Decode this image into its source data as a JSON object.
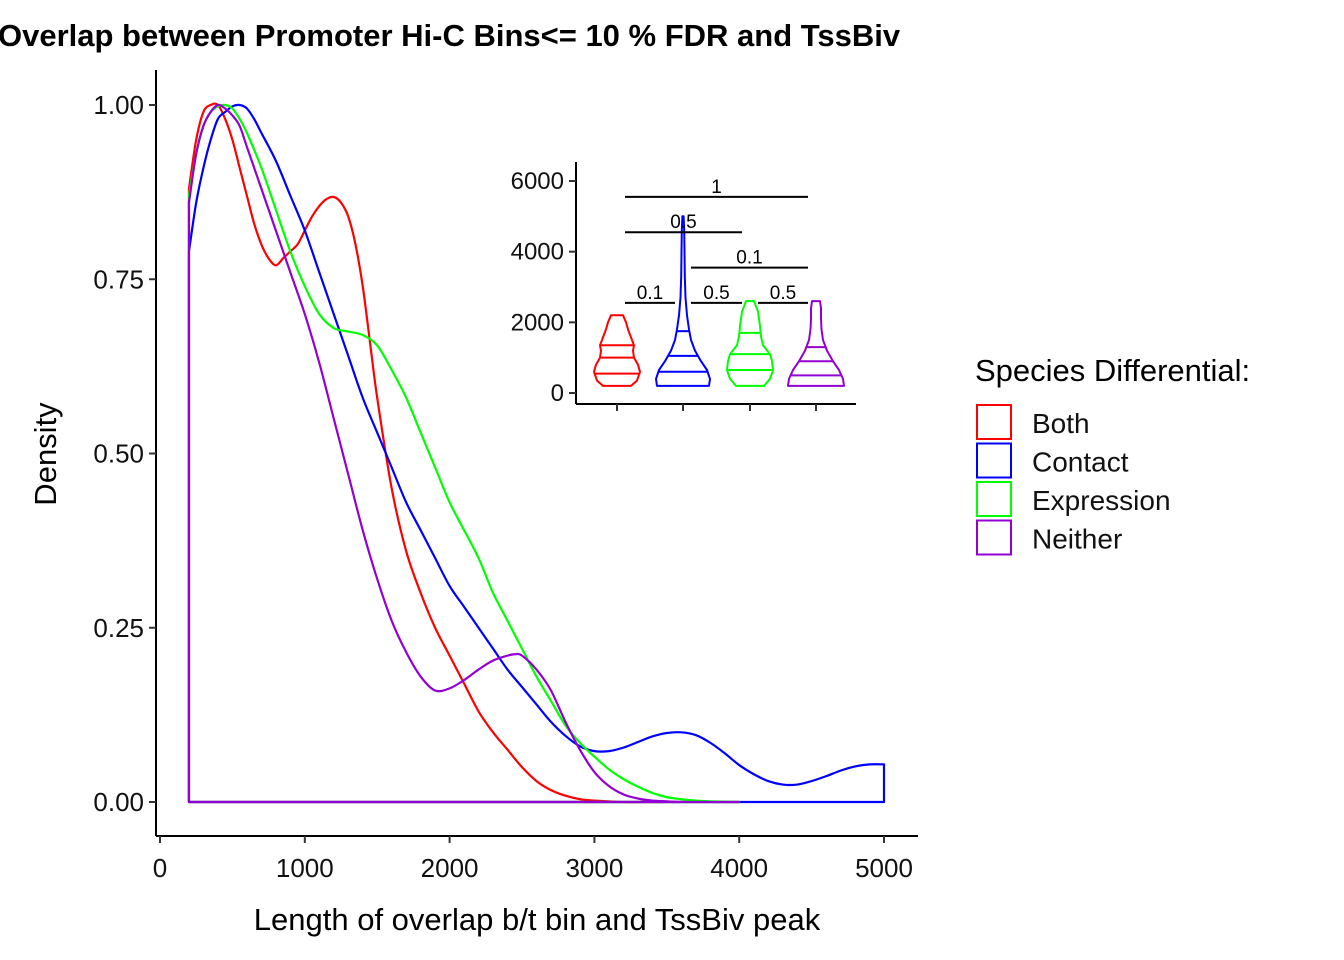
{
  "chart_data": [
    {
      "type": "line",
      "subtype": "density",
      "title": "Overlap between Promoter Hi-C Bins<= 10 % FDR and TssBiv",
      "xlabel": "Length of overlap b/t bin and TssBiv peak",
      "ylabel": "Density",
      "xlim": [
        0,
        5200
      ],
      "ylim": [
        -0.05,
        1.05
      ],
      "xticks": [
        0,
        1000,
        2000,
        3000,
        4000,
        5000
      ],
      "xtick_labels": [
        "0",
        "1000",
        "2000",
        "3000",
        "4000",
        "5000"
      ],
      "yticks": [
        0,
        0.25,
        0.5,
        0.75,
        1.0
      ],
      "ytick_labels": [
        "0.00",
        "0.25",
        "0.50",
        "0.75",
        "1.00"
      ],
      "grid": false,
      "legend_position": "right",
      "legend_title": "Species Differential:",
      "series": [
        {
          "name": "Both",
          "color": "#FF0000",
          "x": [
            200,
            250,
            300,
            350,
            400,
            450,
            500,
            550,
            600,
            650,
            700,
            750,
            800,
            850,
            900,
            950,
            1000,
            1050,
            1100,
            1150,
            1200,
            1250,
            1300,
            1350,
            1400,
            1450,
            1500,
            1600,
            1700,
            1800,
            1900,
            2000,
            2100,
            2200,
            2300,
            2400,
            2500,
            2600,
            2700,
            2800,
            2900,
            3000,
            3200,
            3400,
            3600,
            3800,
            4000
          ],
          "y": [
            0.88,
            0.95,
            0.99,
            1.0,
            1.0,
            0.98,
            0.95,
            0.91,
            0.87,
            0.83,
            0.8,
            0.78,
            0.77,
            0.78,
            0.79,
            0.8,
            0.82,
            0.84,
            0.855,
            0.865,
            0.868,
            0.86,
            0.84,
            0.8,
            0.74,
            0.66,
            0.58,
            0.45,
            0.36,
            0.3,
            0.25,
            0.21,
            0.17,
            0.13,
            0.1,
            0.075,
            0.05,
            0.03,
            0.017,
            0.009,
            0.004,
            0.002,
            0.0,
            0.0,
            0.0,
            0.0,
            0.0
          ]
        },
        {
          "name": "Contact",
          "color": "#0000FF",
          "x": [
            200,
            250,
            300,
            350,
            400,
            450,
            500,
            550,
            600,
            650,
            700,
            800,
            900,
            1000,
            1100,
            1200,
            1300,
            1400,
            1500,
            1600,
            1700,
            1800,
            1900,
            2000,
            2100,
            2200,
            2300,
            2400,
            2500,
            2600,
            2700,
            2800,
            2900,
            3000,
            3100,
            3200,
            3300,
            3400,
            3500,
            3600,
            3700,
            3800,
            3900,
            4000,
            4100,
            4200,
            4300,
            4400,
            4500,
            4600,
            4700,
            4800,
            4900,
            5000
          ],
          "y": [
            0.79,
            0.86,
            0.91,
            0.95,
            0.98,
            0.99,
            0.998,
            1.0,
            0.995,
            0.98,
            0.96,
            0.92,
            0.87,
            0.82,
            0.76,
            0.7,
            0.64,
            0.58,
            0.53,
            0.48,
            0.43,
            0.39,
            0.35,
            0.31,
            0.28,
            0.25,
            0.22,
            0.19,
            0.165,
            0.14,
            0.115,
            0.095,
            0.08,
            0.073,
            0.073,
            0.078,
            0.086,
            0.094,
            0.099,
            0.1,
            0.096,
            0.085,
            0.07,
            0.053,
            0.04,
            0.03,
            0.025,
            0.025,
            0.03,
            0.037,
            0.045,
            0.051,
            0.054,
            0.054
          ]
        },
        {
          "name": "Expression",
          "color": "#00FF00",
          "x": [
            200,
            250,
            300,
            350,
            400,
            450,
            500,
            550,
            600,
            700,
            800,
            900,
            1000,
            1100,
            1200,
            1300,
            1400,
            1500,
            1600,
            1700,
            1800,
            1900,
            2000,
            2100,
            2200,
            2300,
            2400,
            2500,
            2600,
            2700,
            2800,
            2900,
            3000,
            3100,
            3200,
            3300,
            3400,
            3500,
            3600,
            3700,
            3800,
            4000
          ],
          "y": [
            0.87,
            0.93,
            0.97,
            0.99,
            0.998,
            1.0,
            0.995,
            0.98,
            0.96,
            0.91,
            0.85,
            0.79,
            0.74,
            0.7,
            0.68,
            0.675,
            0.67,
            0.655,
            0.62,
            0.58,
            0.53,
            0.48,
            0.43,
            0.39,
            0.35,
            0.3,
            0.26,
            0.22,
            0.18,
            0.145,
            0.11,
            0.085,
            0.065,
            0.047,
            0.033,
            0.022,
            0.013,
            0.007,
            0.004,
            0.002,
            0.001,
            0.0
          ]
        },
        {
          "name": "Neither",
          "color": "#9400D3",
          "x": [
            200,
            250,
            300,
            350,
            400,
            450,
            500,
            550,
            600,
            700,
            800,
            900,
            1000,
            1100,
            1200,
            1300,
            1400,
            1500,
            1600,
            1700,
            1800,
            1900,
            2000,
            2100,
            2200,
            2300,
            2400,
            2450,
            2500,
            2600,
            2700,
            2800,
            2900,
            3000,
            3100,
            3200,
            3300,
            3400,
            3500,
            3600,
            3800,
            4000
          ],
          "y": [
            0.86,
            0.93,
            0.97,
            0.99,
            1.0,
            0.995,
            0.985,
            0.97,
            0.94,
            0.88,
            0.82,
            0.76,
            0.7,
            0.63,
            0.55,
            0.47,
            0.39,
            0.32,
            0.26,
            0.215,
            0.18,
            0.16,
            0.163,
            0.175,
            0.19,
            0.203,
            0.21,
            0.212,
            0.21,
            0.19,
            0.16,
            0.115,
            0.075,
            0.043,
            0.023,
            0.011,
            0.005,
            0.002,
            0.001,
            0.0,
            0.0,
            0.0
          ]
        }
      ]
    },
    {
      "type": "violin",
      "categories": [
        "Both",
        "Contact",
        "Expression",
        "Neither"
      ],
      "ylim": [
        -200,
        6500
      ],
      "yticks": [
        0,
        2000,
        4000,
        6000
      ],
      "ytick_labels": [
        "0",
        "2000",
        "4000",
        "6000"
      ],
      "xtick_labels": [
        "",
        "",
        "",
        ""
      ],
      "series": [
        {
          "name": "Both",
          "color": "#FF0000",
          "min": 200,
          "max": 2200,
          "quantiles": [
            550,
            1000,
            1350
          ]
        },
        {
          "name": "Contact",
          "color": "#0000FF",
          "min": 200,
          "max": 5000,
          "quantiles": [
            600,
            1050,
            1750
          ]
        },
        {
          "name": "Expression",
          "color": "#00FF00",
          "min": 200,
          "max": 2600,
          "quantiles": [
            650,
            1100,
            1700
          ]
        },
        {
          "name": "Neither",
          "color": "#9400D3",
          "min": 200,
          "max": 2600,
          "quantiles": [
            500,
            900,
            1300
          ]
        }
      ],
      "comparisons": [
        {
          "from": "Both",
          "to": "Neither",
          "y": 5550,
          "label": "1"
        },
        {
          "from": "Both",
          "to": "Expression",
          "y": 4550,
          "label": "0.5"
        },
        {
          "from": "Contact",
          "to": "Neither",
          "y": 3550,
          "label": "0.1"
        },
        {
          "from": "Both",
          "to": "Contact",
          "y": 2550,
          "label": "0.1"
        },
        {
          "from": "Contact",
          "to": "Expression",
          "y": 2550,
          "label": "0.5"
        },
        {
          "from": "Expression",
          "to": "Neither",
          "y": 2550,
          "label": "0.5"
        }
      ]
    }
  ]
}
